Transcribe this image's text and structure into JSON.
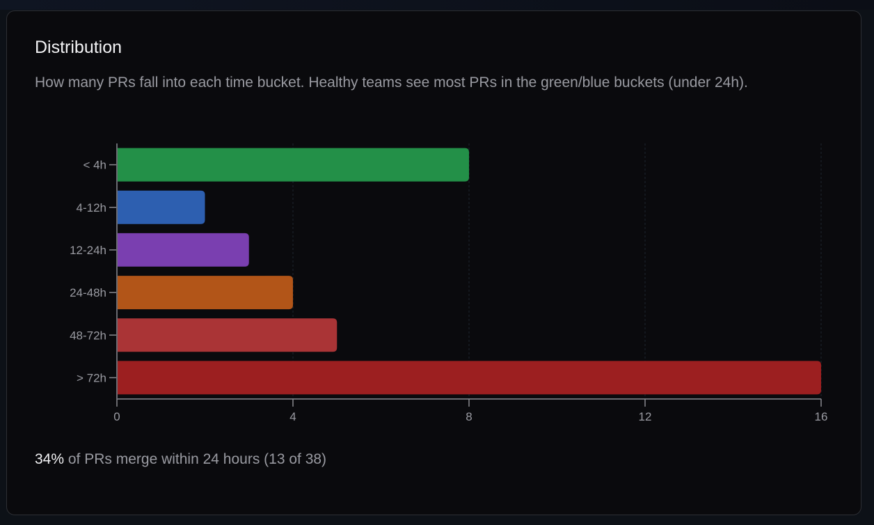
{
  "card": {
    "title": "Distribution",
    "description": "How many PRs fall into each time bucket. Healthy teams see most PRs in the green/blue buckets (under 24h).",
    "summary": {
      "percent": "34%",
      "text": " of PRs merge within 24 hours (13 of 38)"
    }
  },
  "chart_data": {
    "type": "bar",
    "orientation": "horizontal",
    "title": "Distribution",
    "xlabel": "",
    "ylabel": "",
    "categories": [
      "< 4h",
      "4-12h",
      "12-24h",
      "24-48h",
      "48-72h",
      "> 72h"
    ],
    "values": [
      8,
      2,
      3,
      4,
      5,
      16
    ],
    "colors": [
      "#239048",
      "#2d5fb0",
      "#7a3fb0",
      "#b25518",
      "#aa3436",
      "#9c1f20"
    ],
    "xlim": [
      0,
      16
    ],
    "xticks": [
      0,
      4,
      8,
      12,
      16
    ],
    "grid": "vertical dashed",
    "legend": "none"
  }
}
